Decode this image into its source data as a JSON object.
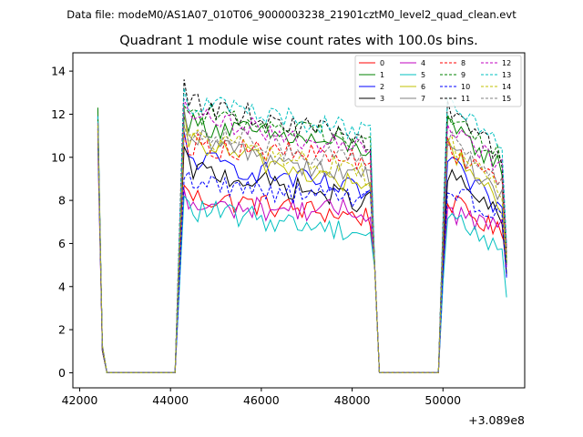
{
  "chart_data": {
    "type": "line",
    "suptitle": "Data file: modeM0/AS1A07_010T06_9000003238_21901cztM0_level2_quad_clean.evt",
    "title": "Quadrant 1 module wise count rates with 100.0s bins.",
    "xlabel": "",
    "ylabel": "",
    "x_offset_label": "+3.089e8",
    "xlim": [
      41850,
      51800
    ],
    "ylim": [
      -0.7,
      14.85
    ],
    "xticks": [
      42000,
      44000,
      46000,
      48000,
      50000
    ],
    "xtick_labels": [
      "42000",
      "44000",
      "46000",
      "48000",
      "50000"
    ],
    "yticks": [
      0,
      2,
      4,
      6,
      8,
      10,
      12,
      14
    ],
    "ytick_labels": [
      "0",
      "2",
      "4",
      "6",
      "8",
      "10",
      "12",
      "14"
    ],
    "grid": false,
    "legend_position": "top-right",
    "segments": [
      {
        "x_start": 42400,
        "x_end": 42500,
        "kind": "decay"
      },
      {
        "x_start": 42600,
        "x_end": 44000,
        "kind": "zero"
      },
      {
        "x_start": 44100,
        "x_end": 44200,
        "kind": "rise"
      },
      {
        "x_start": 44300,
        "x_end": 48400,
        "kind": "plateau"
      },
      {
        "x_start": 48500,
        "x_end": 48500,
        "kind": "decay"
      },
      {
        "x_start": 48600,
        "x_end": 49900,
        "kind": "zero"
      },
      {
        "x_start": 50000,
        "x_end": 50000,
        "kind": "rise"
      },
      {
        "x_start": 50100,
        "x_end": 51400,
        "kind": "plateau"
      }
    ],
    "series": [
      {
        "name": "0",
        "color": "#ff0000",
        "dash": "solid",
        "level_start": 8.2,
        "level_end": 7.2,
        "spike": 11.0,
        "end_value": 5.8
      },
      {
        "name": "1",
        "color": "#008000",
        "dash": "solid",
        "level_start": 11.6,
        "level_end": 10.4,
        "spike": 12.3,
        "end_value": 5.0
      },
      {
        "name": "2",
        "color": "#0000ff",
        "dash": "solid",
        "level_start": 10.0,
        "level_end": 8.3,
        "spike": 11.9,
        "end_value": 4.5
      },
      {
        "name": "3",
        "color": "#000000",
        "dash": "solid",
        "level_start": 9.5,
        "level_end": 7.9,
        "spike": 11.3,
        "end_value": 4.6
      },
      {
        "name": "4",
        "color": "#c000c0",
        "dash": "solid",
        "level_start": 7.7,
        "level_end": 7.5,
        "spike": 10.5,
        "end_value": 4.9
      },
      {
        "name": "5",
        "color": "#00c0c0",
        "dash": "solid",
        "level_start": 7.6,
        "level_end": 6.5,
        "spike": 10.8,
        "end_value": 3.5
      },
      {
        "name": "6",
        "color": "#c0c000",
        "dash": "solid",
        "level_start": 10.8,
        "level_end": 8.5,
        "spike": 11.5,
        "end_value": 5.2
      },
      {
        "name": "7",
        "color": "#808080",
        "dash": "solid",
        "level_start": 10.9,
        "level_end": 9.0,
        "spike": 11.7,
        "end_value": 5.3
      },
      {
        "name": "8",
        "color": "#ff0000",
        "dash": "dashed",
        "level_start": 10.6,
        "level_end": 9.9,
        "spike": 11.2,
        "end_value": 5.4
      },
      {
        "name": "9",
        "color": "#008000",
        "dash": "dashed",
        "level_start": 12.1,
        "level_end": 10.8,
        "spike": 11.8,
        "end_value": 5.1
      },
      {
        "name": "10",
        "color": "#0000ff",
        "dash": "dashed",
        "level_start": 8.9,
        "level_end": 8.0,
        "spike": 11.1,
        "end_value": 4.4
      },
      {
        "name": "11",
        "color": "#000000",
        "dash": "dashed",
        "level_start": 12.6,
        "level_end": 10.7,
        "spike": 11.4,
        "end_value": 5.6
      },
      {
        "name": "12",
        "color": "#c000c0",
        "dash": "dashed",
        "level_start": 11.9,
        "level_end": 10.3,
        "spike": 11.6,
        "end_value": 5.9
      },
      {
        "name": "13",
        "color": "#00c0c0",
        "dash": "dashed",
        "level_start": 12.6,
        "level_end": 11.2,
        "spike": 11.9,
        "end_value": 6.0
      },
      {
        "name": "14",
        "color": "#c0c000",
        "dash": "dashed",
        "level_start": 11.0,
        "level_end": 9.2,
        "spike": 11.5,
        "end_value": 5.5
      },
      {
        "name": "15",
        "color": "#808080",
        "dash": "dashed",
        "level_start": 11.3,
        "level_end": 9.6,
        "spike": 11.6,
        "end_value": 5.6
      }
    ]
  }
}
